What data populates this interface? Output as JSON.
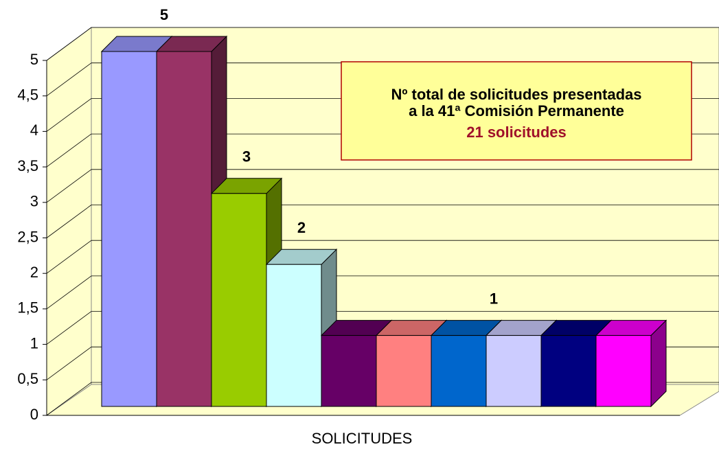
{
  "chart_data": {
    "type": "bar3d",
    "categories": [
      "SOLICITUDES"
    ],
    "series": [
      {
        "color": "#9999ff",
        "values": [
          5
        ]
      },
      {
        "color": "#993366",
        "values": [
          5
        ]
      },
      {
        "color": "#99cc00",
        "values": [
          3
        ]
      },
      {
        "color": "#ccffff",
        "values": [
          2
        ]
      },
      {
        "color": "#660066",
        "values": [
          1
        ]
      },
      {
        "color": "#ff8080",
        "values": [
          1
        ]
      },
      {
        "color": "#0066cc",
        "values": [
          1
        ]
      },
      {
        "color": "#ccccff",
        "values": [
          1
        ]
      },
      {
        "color": "#000080",
        "values": [
          1
        ]
      },
      {
        "color": "#ff00ff",
        "values": [
          1
        ]
      }
    ],
    "ylim": [
      0,
      5
    ],
    "yticks": [
      0,
      {
        "value": 0.5,
        "label": "0,5"
      },
      1,
      {
        "value": 1.5,
        "label": "1,5"
      },
      2,
      {
        "value": 2.5,
        "label": "2,5"
      },
      3,
      {
        "value": 3.5,
        "label": "3,5"
      },
      4,
      {
        "value": 4.5,
        "label": "4,5"
      },
      5
    ],
    "grid": true,
    "annotation": [
      "Nº total de solicitudes presentadas",
      "a la 41ª Comisión Permanente",
      "21 solicitudes"
    ]
  }
}
